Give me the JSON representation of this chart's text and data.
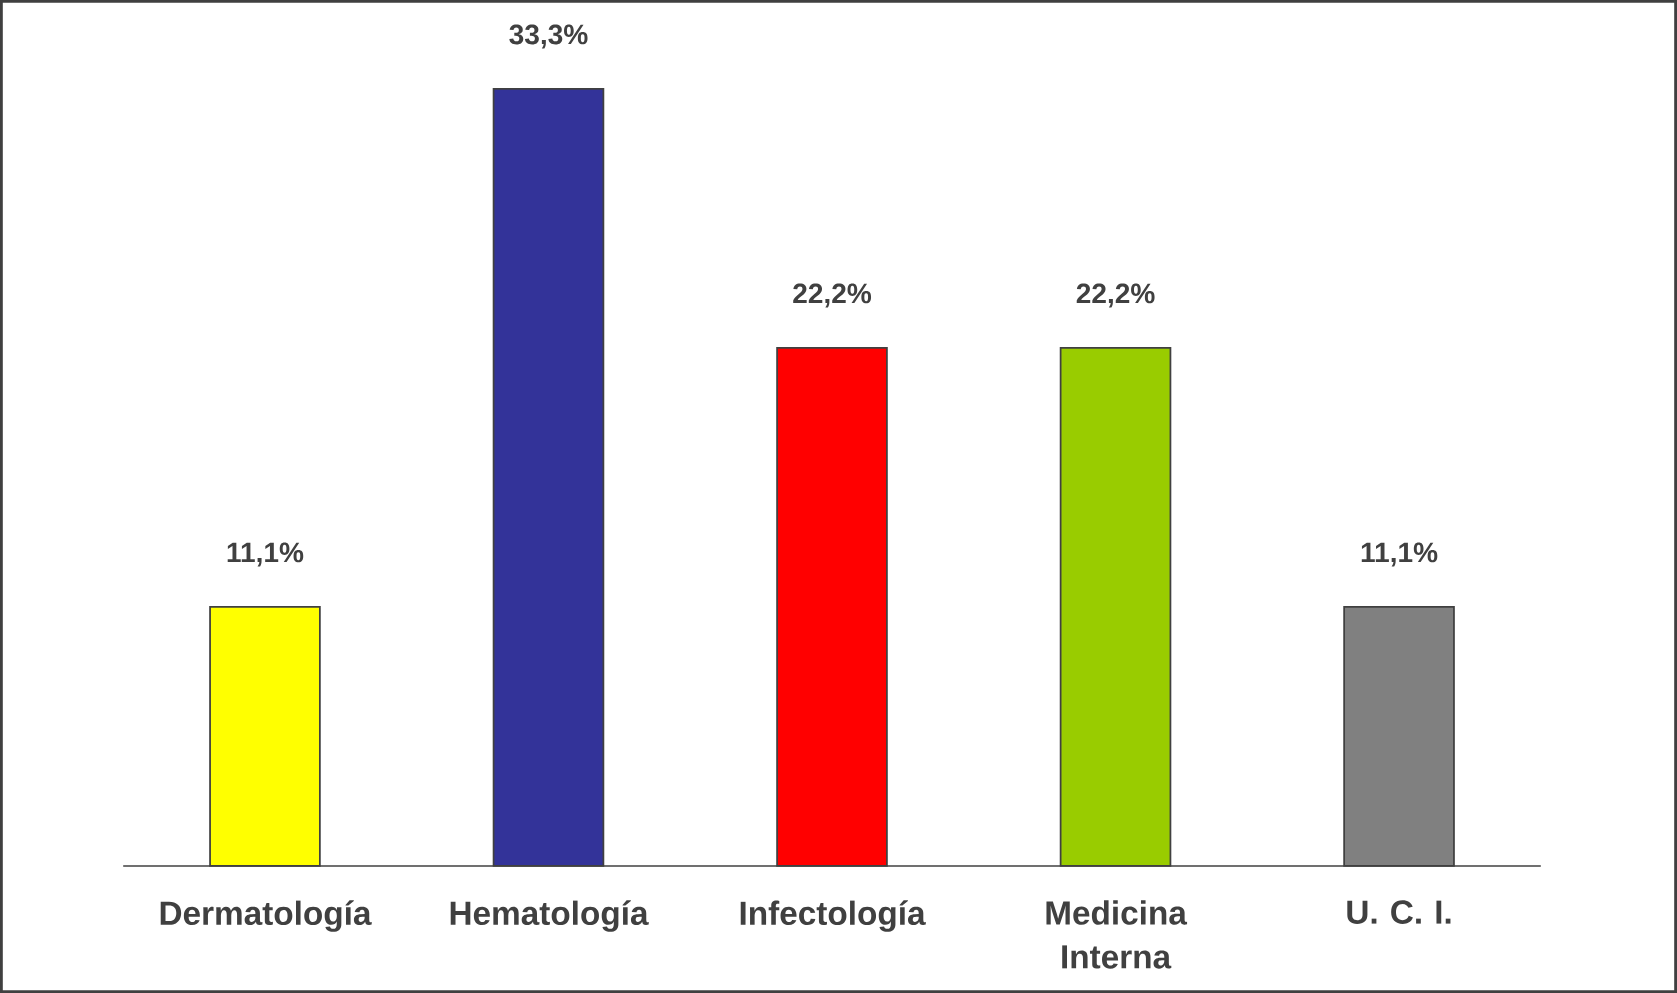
{
  "chart_data": {
    "type": "bar",
    "categories": [
      "Dermatología",
      "Hematología",
      "Infectología",
      "Medicina Interna",
      "U. C. I."
    ],
    "values": [
      11.1,
      33.3,
      22.2,
      22.2,
      11.1
    ],
    "colors": [
      "#ffff00",
      "#333399",
      "#ff0000",
      "#99cc00",
      "#808080"
    ],
    "value_labels": [
      "11,1%",
      "33,3%",
      "22,2%",
      "22,2%",
      "11,1%"
    ]
  }
}
